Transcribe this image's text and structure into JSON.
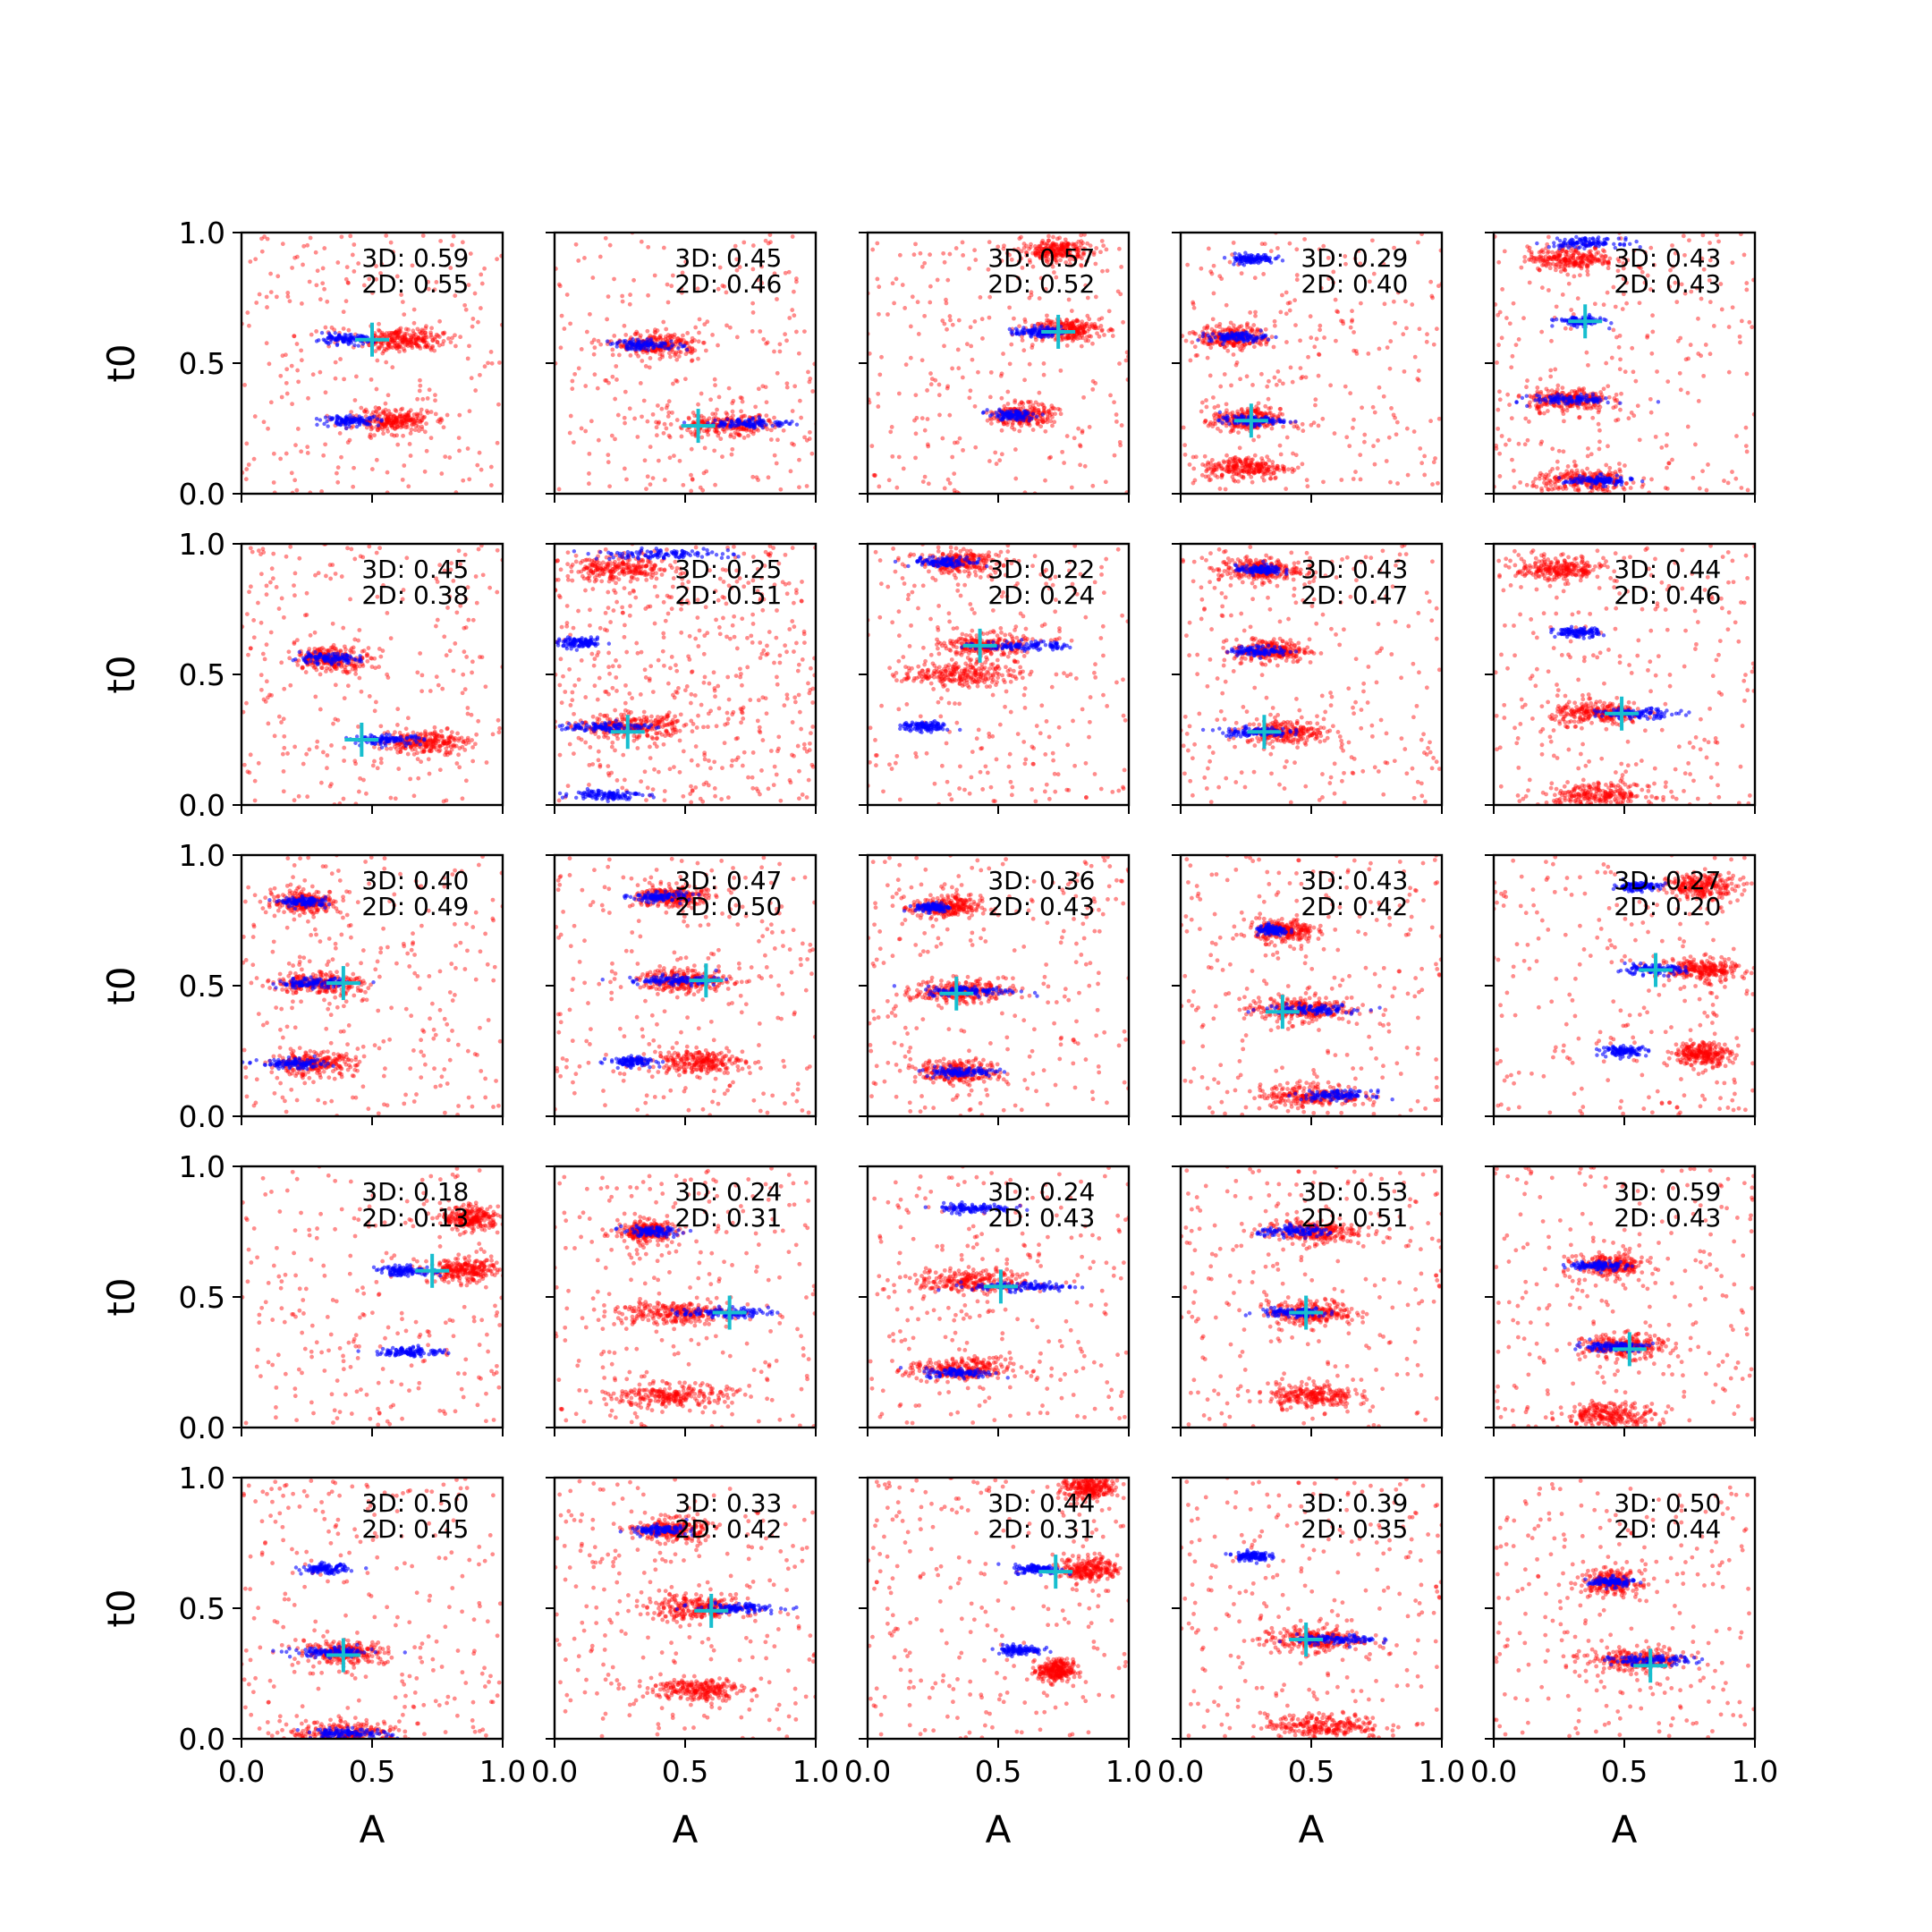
{
  "figure": {
    "rows": 5,
    "cols": 5,
    "xlabel": "A",
    "ylabel": "t0",
    "xlim": [
      0,
      1
    ],
    "ylim": [
      0,
      1
    ],
    "xticks": [
      "0.0",
      "0.5",
      "1.0"
    ],
    "yticks": [
      "0.0",
      "0.5",
      "1.0"
    ],
    "colors": {
      "samples_3d": "#0000ff",
      "samples_2d": "#ff0000",
      "truth_marker": "#17becf"
    }
  },
  "chart_data": [
    {
      "type": "scatter",
      "row": 0,
      "col": 0,
      "label_3d": "3D: 0.59",
      "label_2d": "2D: 0.55",
      "truth": [
        0.5,
        0.59
      ],
      "clusters": [
        {
          "a": 0.39,
          "t": 0.59,
          "w": 0.1,
          "s": "blue"
        },
        {
          "a": 0.42,
          "t": 0.28,
          "w": 0.1,
          "s": "blue"
        },
        {
          "a": 0.62,
          "t": 0.59,
          "w": 0.14,
          "s": "red"
        },
        {
          "a": 0.58,
          "t": 0.28,
          "w": 0.13,
          "s": "red"
        }
      ]
    },
    {
      "type": "scatter",
      "row": 0,
      "col": 1,
      "label_3d": "3D: 0.45",
      "label_2d": "2D: 0.46",
      "truth": [
        0.55,
        0.26
      ],
      "clusters": [
        {
          "a": 0.35,
          "t": 0.57,
          "w": 0.12,
          "s": "blue"
        },
        {
          "a": 0.75,
          "t": 0.27,
          "w": 0.15,
          "s": "blue"
        },
        {
          "a": 0.4,
          "t": 0.57,
          "w": 0.15,
          "s": "red"
        },
        {
          "a": 0.65,
          "t": 0.26,
          "w": 0.18,
          "s": "red"
        }
      ]
    },
    {
      "type": "scatter",
      "row": 0,
      "col": 2,
      "label_3d": "3D: 0.57",
      "label_2d": "2D: 0.52",
      "truth": [
        0.73,
        0.62
      ],
      "clusters": [
        {
          "a": 0.55,
          "t": 0.3,
          "w": 0.08,
          "s": "blue"
        },
        {
          "a": 0.65,
          "t": 0.62,
          "w": 0.08,
          "s": "blue"
        },
        {
          "a": 0.76,
          "t": 0.63,
          "w": 0.12,
          "s": "red"
        },
        {
          "a": 0.6,
          "t": 0.3,
          "w": 0.1,
          "s": "red"
        },
        {
          "a": 0.72,
          "t": 0.93,
          "w": 0.12,
          "s": "red"
        }
      ]
    },
    {
      "type": "scatter",
      "row": 0,
      "col": 3,
      "label_3d": "3D: 0.29",
      "label_2d": "2D: 0.40",
      "truth": [
        0.27,
        0.28
      ],
      "clusters": [
        {
          "a": 0.27,
          "t": 0.9,
          "w": 0.08,
          "s": "blue"
        },
        {
          "a": 0.22,
          "t": 0.6,
          "w": 0.1,
          "s": "blue"
        },
        {
          "a": 0.27,
          "t": 0.28,
          "w": 0.11,
          "s": "blue"
        },
        {
          "a": 0.2,
          "t": 0.6,
          "w": 0.12,
          "s": "red"
        },
        {
          "a": 0.25,
          "t": 0.28,
          "w": 0.12,
          "s": "red"
        },
        {
          "a": 0.25,
          "t": 0.1,
          "w": 0.15,
          "s": "red"
        }
      ]
    },
    {
      "type": "scatter",
      "row": 0,
      "col": 4,
      "label_3d": "3D: 0.43",
      "label_2d": "2D: 0.43",
      "truth": [
        0.35,
        0.66
      ],
      "clusters": [
        {
          "a": 0.35,
          "t": 0.96,
          "w": 0.12,
          "s": "blue"
        },
        {
          "a": 0.33,
          "t": 0.66,
          "w": 0.08,
          "s": "blue"
        },
        {
          "a": 0.3,
          "t": 0.36,
          "w": 0.14,
          "s": "blue"
        },
        {
          "a": 0.4,
          "t": 0.05,
          "w": 0.12,
          "s": "blue"
        },
        {
          "a": 0.3,
          "t": 0.9,
          "w": 0.15,
          "s": "red"
        },
        {
          "a": 0.28,
          "t": 0.36,
          "w": 0.14,
          "s": "red"
        },
        {
          "a": 0.35,
          "t": 0.05,
          "w": 0.18,
          "s": "red"
        }
      ]
    },
    {
      "type": "scatter",
      "row": 1,
      "col": 0,
      "label_3d": "3D: 0.45",
      "label_2d": "2D: 0.38",
      "truth": [
        0.46,
        0.25
      ],
      "clusters": [
        {
          "a": 0.32,
          "t": 0.56,
          "w": 0.12,
          "s": "blue"
        },
        {
          "a": 0.56,
          "t": 0.25,
          "w": 0.12,
          "s": "blue"
        },
        {
          "a": 0.35,
          "t": 0.56,
          "w": 0.14,
          "s": "red"
        },
        {
          "a": 0.7,
          "t": 0.24,
          "w": 0.15,
          "s": "red"
        }
      ]
    },
    {
      "type": "scatter",
      "row": 1,
      "col": 1,
      "label_3d": "3D: 0.25",
      "label_2d": "2D: 0.51",
      "truth": [
        0.28,
        0.28
      ],
      "clusters": [
        {
          "a": 0.2,
          "t": 0.3,
          "w": 0.16,
          "s": "blue"
        },
        {
          "a": 0.1,
          "t": 0.62,
          "w": 0.08,
          "s": "blue"
        },
        {
          "a": 0.4,
          "t": 0.96,
          "w": 0.25,
          "s": "blue"
        },
        {
          "a": 0.2,
          "t": 0.04,
          "w": 0.12,
          "s": "blue"
        },
        {
          "a": 0.3,
          "t": 0.3,
          "w": 0.18,
          "s": "red"
        },
        {
          "a": 0.25,
          "t": 0.9,
          "w": 0.2,
          "s": "red"
        }
      ]
    },
    {
      "type": "scatter",
      "row": 1,
      "col": 2,
      "label_3d": "3D: 0.22",
      "label_2d": "2D: 0.24",
      "truth": [
        0.43,
        0.61
      ],
      "clusters": [
        {
          "a": 0.6,
          "t": 0.61,
          "w": 0.16,
          "s": "blue"
        },
        {
          "a": 0.3,
          "t": 0.93,
          "w": 0.12,
          "s": "blue"
        },
        {
          "a": 0.22,
          "t": 0.3,
          "w": 0.08,
          "s": "blue"
        },
        {
          "a": 0.45,
          "t": 0.61,
          "w": 0.14,
          "s": "red"
        },
        {
          "a": 0.35,
          "t": 0.93,
          "w": 0.14,
          "s": "red"
        },
        {
          "a": 0.35,
          "t": 0.5,
          "w": 0.2,
          "s": "red"
        }
      ]
    },
    {
      "type": "scatter",
      "row": 1,
      "col": 3,
      "label_3d": "3D: 0.43",
      "label_2d": "2D: 0.47",
      "truth": [
        0.32,
        0.28
      ],
      "clusters": [
        {
          "a": 0.3,
          "t": 0.9,
          "w": 0.08,
          "s": "blue"
        },
        {
          "a": 0.3,
          "t": 0.59,
          "w": 0.1,
          "s": "blue"
        },
        {
          "a": 0.28,
          "t": 0.28,
          "w": 0.12,
          "s": "blue"
        },
        {
          "a": 0.35,
          "t": 0.59,
          "w": 0.13,
          "s": "red"
        },
        {
          "a": 0.4,
          "t": 0.28,
          "w": 0.14,
          "s": "red"
        },
        {
          "a": 0.3,
          "t": 0.9,
          "w": 0.14,
          "s": "red"
        }
      ]
    },
    {
      "type": "scatter",
      "row": 1,
      "col": 4,
      "label_3d": "3D: 0.44",
      "label_2d": "2D: 0.46",
      "truth": [
        0.49,
        0.35
      ],
      "clusters": [
        {
          "a": 0.32,
          "t": 0.66,
          "w": 0.08,
          "s": "blue"
        },
        {
          "a": 0.55,
          "t": 0.35,
          "w": 0.14,
          "s": "blue"
        },
        {
          "a": 0.4,
          "t": 0.35,
          "w": 0.16,
          "s": "red"
        },
        {
          "a": 0.4,
          "t": 0.04,
          "w": 0.2,
          "s": "red"
        },
        {
          "a": 0.25,
          "t": 0.9,
          "w": 0.15,
          "s": "red"
        }
      ]
    },
    {
      "type": "scatter",
      "row": 2,
      "col": 0,
      "label_3d": "3D: 0.40",
      "label_2d": "2D: 0.49",
      "truth": [
        0.39,
        0.51
      ],
      "clusters": [
        {
          "a": 0.24,
          "t": 0.82,
          "w": 0.08,
          "s": "blue"
        },
        {
          "a": 0.27,
          "t": 0.51,
          "w": 0.12,
          "s": "blue"
        },
        {
          "a": 0.2,
          "t": 0.2,
          "w": 0.12,
          "s": "blue"
        },
        {
          "a": 0.3,
          "t": 0.51,
          "w": 0.15,
          "s": "red"
        },
        {
          "a": 0.27,
          "t": 0.2,
          "w": 0.15,
          "s": "red"
        },
        {
          "a": 0.25,
          "t": 0.82,
          "w": 0.12,
          "s": "red"
        }
      ]
    },
    {
      "type": "scatter",
      "row": 2,
      "col": 1,
      "label_3d": "3D: 0.47",
      "label_2d": "2D: 0.50",
      "truth": [
        0.58,
        0.52
      ],
      "clusters": [
        {
          "a": 0.4,
          "t": 0.84,
          "w": 0.1,
          "s": "blue"
        },
        {
          "a": 0.45,
          "t": 0.52,
          "w": 0.16,
          "s": "blue"
        },
        {
          "a": 0.3,
          "t": 0.21,
          "w": 0.08,
          "s": "blue"
        },
        {
          "a": 0.5,
          "t": 0.52,
          "w": 0.16,
          "s": "red"
        },
        {
          "a": 0.55,
          "t": 0.21,
          "w": 0.16,
          "s": "red"
        },
        {
          "a": 0.45,
          "t": 0.84,
          "w": 0.12,
          "s": "red"
        }
      ]
    },
    {
      "type": "scatter",
      "row": 2,
      "col": 2,
      "label_3d": "3D: 0.36",
      "label_2d": "2D: 0.43",
      "truth": [
        0.34,
        0.47
      ],
      "clusters": [
        {
          "a": 0.25,
          "t": 0.8,
          "w": 0.06,
          "s": "blue"
        },
        {
          "a": 0.4,
          "t": 0.48,
          "w": 0.16,
          "s": "blue"
        },
        {
          "a": 0.35,
          "t": 0.17,
          "w": 0.12,
          "s": "blue"
        },
        {
          "a": 0.35,
          "t": 0.48,
          "w": 0.16,
          "s": "red"
        },
        {
          "a": 0.35,
          "t": 0.17,
          "w": 0.14,
          "s": "red"
        },
        {
          "a": 0.3,
          "t": 0.8,
          "w": 0.12,
          "s": "red"
        }
      ]
    },
    {
      "type": "scatter",
      "row": 2,
      "col": 3,
      "label_3d": "3D: 0.43",
      "label_2d": "2D: 0.42",
      "truth": [
        0.39,
        0.4
      ],
      "clusters": [
        {
          "a": 0.35,
          "t": 0.71,
          "w": 0.06,
          "s": "blue"
        },
        {
          "a": 0.5,
          "t": 0.41,
          "w": 0.16,
          "s": "blue"
        },
        {
          "a": 0.6,
          "t": 0.08,
          "w": 0.12,
          "s": "blue"
        },
        {
          "a": 0.45,
          "t": 0.41,
          "w": 0.18,
          "s": "red"
        },
        {
          "a": 0.5,
          "t": 0.08,
          "w": 0.18,
          "s": "red"
        },
        {
          "a": 0.4,
          "t": 0.71,
          "w": 0.1,
          "s": "red"
        }
      ]
    },
    {
      "type": "scatter",
      "row": 2,
      "col": 4,
      "label_3d": "3D: 0.27",
      "label_2d": "2D: 0.20",
      "truth": [
        0.62,
        0.56
      ],
      "clusters": [
        {
          "a": 0.55,
          "t": 0.88,
          "w": 0.08,
          "s": "blue"
        },
        {
          "a": 0.6,
          "t": 0.56,
          "w": 0.12,
          "s": "blue"
        },
        {
          "a": 0.5,
          "t": 0.25,
          "w": 0.08,
          "s": "blue"
        },
        {
          "a": 0.8,
          "t": 0.56,
          "w": 0.12,
          "s": "red"
        },
        {
          "a": 0.8,
          "t": 0.88,
          "w": 0.12,
          "s": "red"
        },
        {
          "a": 0.8,
          "t": 0.24,
          "w": 0.1,
          "s": "red"
        }
      ]
    },
    {
      "type": "scatter",
      "row": 3,
      "col": 0,
      "label_3d": "3D: 0.18",
      "label_2d": "2D: 0.13",
      "truth": [
        0.73,
        0.6
      ],
      "clusters": [
        {
          "a": 0.63,
          "t": 0.6,
          "w": 0.1,
          "s": "blue"
        },
        {
          "a": 0.65,
          "t": 0.29,
          "w": 0.12,
          "s": "blue"
        },
        {
          "a": 0.88,
          "t": 0.8,
          "w": 0.1,
          "s": "red"
        },
        {
          "a": 0.85,
          "t": 0.6,
          "w": 0.12,
          "s": "red"
        }
      ]
    },
    {
      "type": "scatter",
      "row": 3,
      "col": 1,
      "label_3d": "3D: 0.24",
      "label_2d": "2D: 0.31",
      "truth": [
        0.67,
        0.44
      ],
      "clusters": [
        {
          "a": 0.37,
          "t": 0.75,
          "w": 0.1,
          "s": "blue"
        },
        {
          "a": 0.65,
          "t": 0.44,
          "w": 0.15,
          "s": "blue"
        },
        {
          "a": 0.45,
          "t": 0.44,
          "w": 0.2,
          "s": "red"
        },
        {
          "a": 0.45,
          "t": 0.12,
          "w": 0.2,
          "s": "red"
        },
        {
          "a": 0.35,
          "t": 0.75,
          "w": 0.1,
          "s": "red"
        }
      ]
    },
    {
      "type": "scatter",
      "row": 3,
      "col": 2,
      "label_3d": "3D: 0.24",
      "label_2d": "2D: 0.43",
      "truth": [
        0.51,
        0.54
      ],
      "clusters": [
        {
          "a": 0.6,
          "t": 0.54,
          "w": 0.18,
          "s": "blue"
        },
        {
          "a": 0.35,
          "t": 0.21,
          "w": 0.12,
          "s": "blue"
        },
        {
          "a": 0.4,
          "t": 0.84,
          "w": 0.14,
          "s": "blue"
        },
        {
          "a": 0.4,
          "t": 0.56,
          "w": 0.2,
          "s": "red"
        },
        {
          "a": 0.35,
          "t": 0.22,
          "w": 0.18,
          "s": "red"
        }
      ]
    },
    {
      "type": "scatter",
      "row": 3,
      "col": 3,
      "label_3d": "3D: 0.53",
      "label_2d": "2D: 0.51",
      "truth": [
        0.48,
        0.44
      ],
      "clusters": [
        {
          "a": 0.45,
          "t": 0.75,
          "w": 0.14,
          "s": "blue"
        },
        {
          "a": 0.43,
          "t": 0.44,
          "w": 0.12,
          "s": "blue"
        },
        {
          "a": 0.5,
          "t": 0.75,
          "w": 0.16,
          "s": "red"
        },
        {
          "a": 0.5,
          "t": 0.44,
          "w": 0.15,
          "s": "red"
        },
        {
          "a": 0.5,
          "t": 0.12,
          "w": 0.15,
          "s": "red"
        }
      ]
    },
    {
      "type": "scatter",
      "row": 3,
      "col": 4,
      "label_3d": "3D: 0.59",
      "label_2d": "2D: 0.43",
      "truth": [
        0.52,
        0.3
      ],
      "clusters": [
        {
          "a": 0.4,
          "t": 0.62,
          "w": 0.1,
          "s": "blue"
        },
        {
          "a": 0.45,
          "t": 0.31,
          "w": 0.12,
          "s": "blue"
        },
        {
          "a": 0.45,
          "t": 0.62,
          "w": 0.12,
          "s": "red"
        },
        {
          "a": 0.5,
          "t": 0.31,
          "w": 0.14,
          "s": "red"
        },
        {
          "a": 0.45,
          "t": 0.05,
          "w": 0.16,
          "s": "red"
        }
      ]
    },
    {
      "type": "scatter",
      "row": 4,
      "col": 0,
      "label_3d": "3D: 0.50",
      "label_2d": "2D: 0.45",
      "truth": [
        0.39,
        0.32
      ],
      "clusters": [
        {
          "a": 0.32,
          "t": 0.65,
          "w": 0.08,
          "s": "blue"
        },
        {
          "a": 0.35,
          "t": 0.33,
          "w": 0.14,
          "s": "blue"
        },
        {
          "a": 0.4,
          "t": 0.02,
          "w": 0.15,
          "s": "blue"
        },
        {
          "a": 0.4,
          "t": 0.33,
          "w": 0.14,
          "s": "red"
        },
        {
          "a": 0.4,
          "t": 0.02,
          "w": 0.2,
          "s": "red"
        }
      ]
    },
    {
      "type": "scatter",
      "row": 4,
      "col": 1,
      "label_3d": "3D: 0.33",
      "label_2d": "2D: 0.42",
      "truth": [
        0.6,
        0.49
      ],
      "clusters": [
        {
          "a": 0.4,
          "t": 0.8,
          "w": 0.1,
          "s": "blue"
        },
        {
          "a": 0.7,
          "t": 0.5,
          "w": 0.15,
          "s": "blue"
        },
        {
          "a": 0.55,
          "t": 0.5,
          "w": 0.18,
          "s": "red"
        },
        {
          "a": 0.55,
          "t": 0.19,
          "w": 0.15,
          "s": "red"
        },
        {
          "a": 0.45,
          "t": 0.8,
          "w": 0.12,
          "s": "red"
        }
      ]
    },
    {
      "type": "scatter",
      "row": 4,
      "col": 2,
      "label_3d": "3D: 0.44",
      "label_2d": "2D: 0.31",
      "truth": [
        0.72,
        0.64
      ],
      "clusters": [
        {
          "a": 0.65,
          "t": 0.65,
          "w": 0.08,
          "s": "blue"
        },
        {
          "a": 0.58,
          "t": 0.34,
          "w": 0.08,
          "s": "blue"
        },
        {
          "a": 0.85,
          "t": 0.65,
          "w": 0.1,
          "s": "red"
        },
        {
          "a": 0.85,
          "t": 0.96,
          "w": 0.1,
          "s": "red"
        },
        {
          "a": 0.72,
          "t": 0.26,
          "w": 0.06,
          "s": "red"
        }
      ]
    },
    {
      "type": "scatter",
      "row": 4,
      "col": 3,
      "label_3d": "3D: 0.39",
      "label_2d": "2D: 0.35",
      "truth": [
        0.48,
        0.38
      ],
      "clusters": [
        {
          "a": 0.27,
          "t": 0.7,
          "w": 0.06,
          "s": "blue"
        },
        {
          "a": 0.6,
          "t": 0.38,
          "w": 0.14,
          "s": "blue"
        },
        {
          "a": 0.5,
          "t": 0.38,
          "w": 0.18,
          "s": "red"
        },
        {
          "a": 0.55,
          "t": 0.05,
          "w": 0.2,
          "s": "red"
        }
      ]
    },
    {
      "type": "scatter",
      "row": 4,
      "col": 4,
      "label_3d": "3D: 0.50",
      "label_2d": "2D: 0.44",
      "truth": [
        0.6,
        0.28
      ],
      "clusters": [
        {
          "a": 0.45,
          "t": 0.6,
          "w": 0.08,
          "s": "blue"
        },
        {
          "a": 0.6,
          "t": 0.3,
          "w": 0.14,
          "s": "blue"
        },
        {
          "a": 0.45,
          "t": 0.6,
          "w": 0.1,
          "s": "red"
        },
        {
          "a": 0.55,
          "t": 0.3,
          "w": 0.18,
          "s": "red"
        }
      ]
    }
  ]
}
